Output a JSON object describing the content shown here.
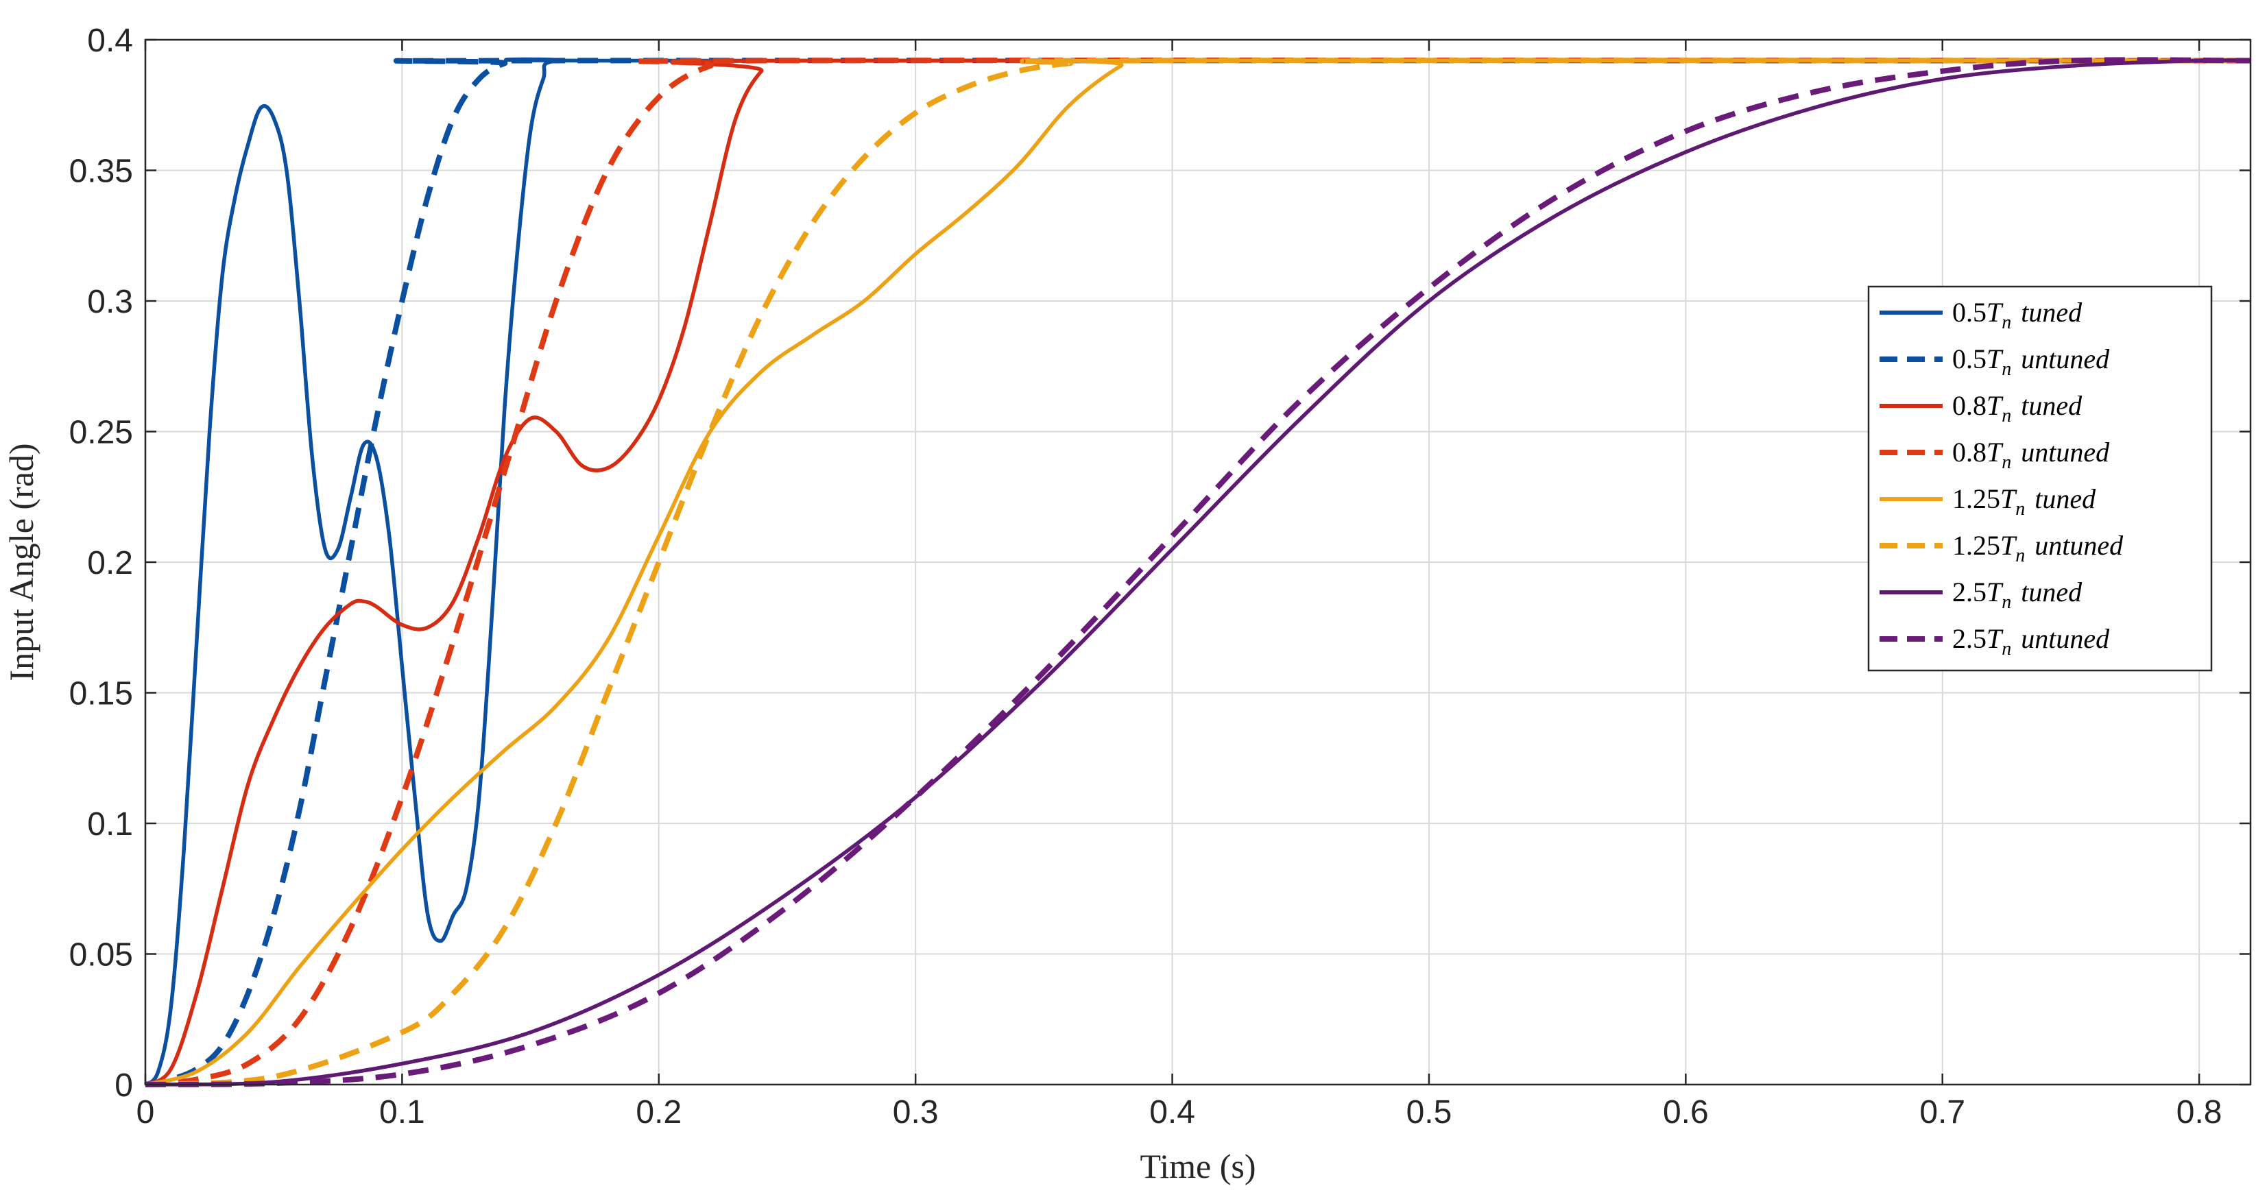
{
  "chart_data": {
    "type": "line",
    "title": "",
    "xlabel": "Time (s)",
    "ylabel": "Input Angle (rad)",
    "xlim": [
      0,
      0.82
    ],
    "ylim": [
      0,
      0.4
    ],
    "x_ticks": [
      0,
      0.1,
      0.2,
      0.3,
      0.4,
      0.5,
      0.6,
      0.7,
      0.8
    ],
    "x_tick_labels": [
      "0",
      "0.1",
      "0.2",
      "0.3",
      "0.4",
      "0.5",
      "0.6",
      "0.7",
      "0.8"
    ],
    "y_ticks": [
      0,
      0.05,
      0.1,
      0.15,
      0.2,
      0.25,
      0.3,
      0.35,
      0.4
    ],
    "y_tick_labels": [
      "0",
      "0.05",
      "0.1",
      "0.15",
      "0.2",
      "0.25",
      "0.3",
      "0.35",
      "0.4"
    ],
    "grid": true,
    "legend_position": "right",
    "series": [
      {
        "name": "0.5T_n tuned",
        "legend": {
          "coef": "0.5",
          "sym": "T",
          "sub": "n",
          "word": "tuned"
        },
        "color": "#0a4fa0",
        "style": "solid",
        "points": [
          [
            0,
            0
          ],
          [
            0.005,
            0.005
          ],
          [
            0.01,
            0.03
          ],
          [
            0.015,
            0.09
          ],
          [
            0.02,
            0.17
          ],
          [
            0.025,
            0.25
          ],
          [
            0.03,
            0.31
          ],
          [
            0.035,
            0.34
          ],
          [
            0.04,
            0.36
          ],
          [
            0.045,
            0.374
          ],
          [
            0.05,
            0.37
          ],
          [
            0.055,
            0.35
          ],
          [
            0.06,
            0.3
          ],
          [
            0.065,
            0.24
          ],
          [
            0.07,
            0.205
          ],
          [
            0.075,
            0.205
          ],
          [
            0.08,
            0.225
          ],
          [
            0.085,
            0.245
          ],
          [
            0.09,
            0.24
          ],
          [
            0.095,
            0.21
          ],
          [
            0.1,
            0.16
          ],
          [
            0.105,
            0.11
          ],
          [
            0.11,
            0.065
          ],
          [
            0.115,
            0.055
          ],
          [
            0.12,
            0.065
          ],
          [
            0.125,
            0.075
          ],
          [
            0.13,
            0.11
          ],
          [
            0.135,
            0.18
          ],
          [
            0.14,
            0.26
          ],
          [
            0.145,
            0.32
          ],
          [
            0.15,
            0.365
          ],
          [
            0.155,
            0.385
          ],
          [
            0.16,
            0.392
          ],
          [
            0.2,
            0.392
          ],
          [
            0.82,
            0.392
          ]
        ]
      },
      {
        "name": "0.5T_n untuned",
        "legend": {
          "coef": "0.5",
          "sym": "T",
          "sub": "n",
          "word": "untuned"
        },
        "color": "#0a4fa0",
        "style": "dashed",
        "points": [
          [
            0,
            0
          ],
          [
            0.01,
            0.002
          ],
          [
            0.02,
            0.006
          ],
          [
            0.03,
            0.015
          ],
          [
            0.04,
            0.035
          ],
          [
            0.05,
            0.065
          ],
          [
            0.06,
            0.105
          ],
          [
            0.07,
            0.155
          ],
          [
            0.08,
            0.205
          ],
          [
            0.09,
            0.255
          ],
          [
            0.1,
            0.3
          ],
          [
            0.11,
            0.34
          ],
          [
            0.12,
            0.37
          ],
          [
            0.13,
            0.385
          ],
          [
            0.14,
            0.391
          ],
          [
            0.15,
            0.392
          ],
          [
            0.82,
            0.392
          ]
        ]
      },
      {
        "name": "0.8T_n tuned",
        "legend": {
          "coef": "0.8",
          "sym": "T",
          "sub": "n",
          "word": "tuned"
        },
        "color": "#d62c12",
        "style": "solid",
        "points": [
          [
            0,
            0
          ],
          [
            0.01,
            0.006
          ],
          [
            0.02,
            0.035
          ],
          [
            0.03,
            0.075
          ],
          [
            0.04,
            0.115
          ],
          [
            0.05,
            0.14
          ],
          [
            0.06,
            0.16
          ],
          [
            0.07,
            0.175
          ],
          [
            0.08,
            0.184
          ],
          [
            0.085,
            0.185
          ],
          [
            0.09,
            0.183
          ],
          [
            0.1,
            0.176
          ],
          [
            0.11,
            0.175
          ],
          [
            0.12,
            0.185
          ],
          [
            0.13,
            0.21
          ],
          [
            0.14,
            0.24
          ],
          [
            0.15,
            0.255
          ],
          [
            0.16,
            0.25
          ],
          [
            0.17,
            0.237
          ],
          [
            0.18,
            0.236
          ],
          [
            0.19,
            0.245
          ],
          [
            0.2,
            0.262
          ],
          [
            0.21,
            0.29
          ],
          [
            0.22,
            0.33
          ],
          [
            0.23,
            0.37
          ],
          [
            0.24,
            0.388
          ],
          [
            0.25,
            0.392
          ],
          [
            0.82,
            0.392
          ]
        ]
      },
      {
        "name": "0.8T_n untuned",
        "legend": {
          "coef": "0.8",
          "sym": "T",
          "sub": "n",
          "word": "untuned"
        },
        "color": "#e03a14",
        "style": "dashed",
        "points": [
          [
            0,
            0
          ],
          [
            0.02,
            0.002
          ],
          [
            0.04,
            0.008
          ],
          [
            0.06,
            0.025
          ],
          [
            0.08,
            0.06
          ],
          [
            0.1,
            0.11
          ],
          [
            0.12,
            0.17
          ],
          [
            0.14,
            0.235
          ],
          [
            0.16,
            0.3
          ],
          [
            0.18,
            0.35
          ],
          [
            0.2,
            0.378
          ],
          [
            0.22,
            0.39
          ],
          [
            0.24,
            0.392
          ],
          [
            0.82,
            0.392
          ]
        ]
      },
      {
        "name": "1.25T_n tuned",
        "legend": {
          "coef": "1.25",
          "sym": "T",
          "sub": "n",
          "word": "tuned"
        },
        "color": "#eda114",
        "style": "solid",
        "points": [
          [
            0,
            0
          ],
          [
            0.02,
            0.005
          ],
          [
            0.04,
            0.02
          ],
          [
            0.06,
            0.045
          ],
          [
            0.08,
            0.068
          ],
          [
            0.1,
            0.09
          ],
          [
            0.12,
            0.11
          ],
          [
            0.14,
            0.128
          ],
          [
            0.16,
            0.145
          ],
          [
            0.18,
            0.17
          ],
          [
            0.2,
            0.21
          ],
          [
            0.22,
            0.25
          ],
          [
            0.24,
            0.273
          ],
          [
            0.26,
            0.287
          ],
          [
            0.28,
            0.3
          ],
          [
            0.3,
            0.318
          ],
          [
            0.32,
            0.334
          ],
          [
            0.34,
            0.352
          ],
          [
            0.36,
            0.375
          ],
          [
            0.38,
            0.39
          ],
          [
            0.39,
            0.392
          ],
          [
            0.82,
            0.392
          ]
        ]
      },
      {
        "name": "1.25T_n untuned",
        "legend": {
          "coef": "1.25",
          "sym": "T",
          "sub": "n",
          "word": "untuned"
        },
        "color": "#eda114",
        "style": "dashed",
        "points": [
          [
            0,
            0
          ],
          [
            0.05,
            0.003
          ],
          [
            0.1,
            0.02
          ],
          [
            0.12,
            0.035
          ],
          [
            0.14,
            0.06
          ],
          [
            0.16,
            0.1
          ],
          [
            0.18,
            0.15
          ],
          [
            0.2,
            0.2
          ],
          [
            0.22,
            0.25
          ],
          [
            0.24,
            0.295
          ],
          [
            0.26,
            0.33
          ],
          [
            0.28,
            0.355
          ],
          [
            0.3,
            0.372
          ],
          [
            0.32,
            0.382
          ],
          [
            0.34,
            0.388
          ],
          [
            0.36,
            0.391
          ],
          [
            0.38,
            0.392
          ],
          [
            0.82,
            0.392
          ]
        ]
      },
      {
        "name": "2.5T_n tuned",
        "legend": {
          "coef": "2.5",
          "sym": "T",
          "sub": "n",
          "word": "tuned"
        },
        "color": "#5e1a72",
        "style": "solid",
        "points": [
          [
            0,
            0
          ],
          [
            0.05,
            0.001
          ],
          [
            0.1,
            0.008
          ],
          [
            0.15,
            0.02
          ],
          [
            0.2,
            0.042
          ],
          [
            0.25,
            0.073
          ],
          [
            0.3,
            0.11
          ],
          [
            0.35,
            0.155
          ],
          [
            0.4,
            0.205
          ],
          [
            0.45,
            0.255
          ],
          [
            0.5,
            0.3
          ],
          [
            0.55,
            0.333
          ],
          [
            0.6,
            0.357
          ],
          [
            0.65,
            0.374
          ],
          [
            0.7,
            0.385
          ],
          [
            0.75,
            0.39
          ],
          [
            0.8,
            0.392
          ],
          [
            0.82,
            0.392
          ]
        ]
      },
      {
        "name": "2.5T_n untuned",
        "legend": {
          "coef": "2.5",
          "sym": "T",
          "sub": "n",
          "word": "untuned"
        },
        "color": "#6a1a78",
        "style": "dashed",
        "points": [
          [
            0,
            0
          ],
          [
            0.05,
            0.0005
          ],
          [
            0.1,
            0.004
          ],
          [
            0.15,
            0.015
          ],
          [
            0.2,
            0.035
          ],
          [
            0.25,
            0.068
          ],
          [
            0.3,
            0.11
          ],
          [
            0.35,
            0.158
          ],
          [
            0.4,
            0.21
          ],
          [
            0.45,
            0.262
          ],
          [
            0.5,
            0.305
          ],
          [
            0.55,
            0.34
          ],
          [
            0.6,
            0.365
          ],
          [
            0.65,
            0.38
          ],
          [
            0.7,
            0.388
          ],
          [
            0.75,
            0.392
          ],
          [
            0.82,
            0.392
          ]
        ]
      }
    ]
  }
}
